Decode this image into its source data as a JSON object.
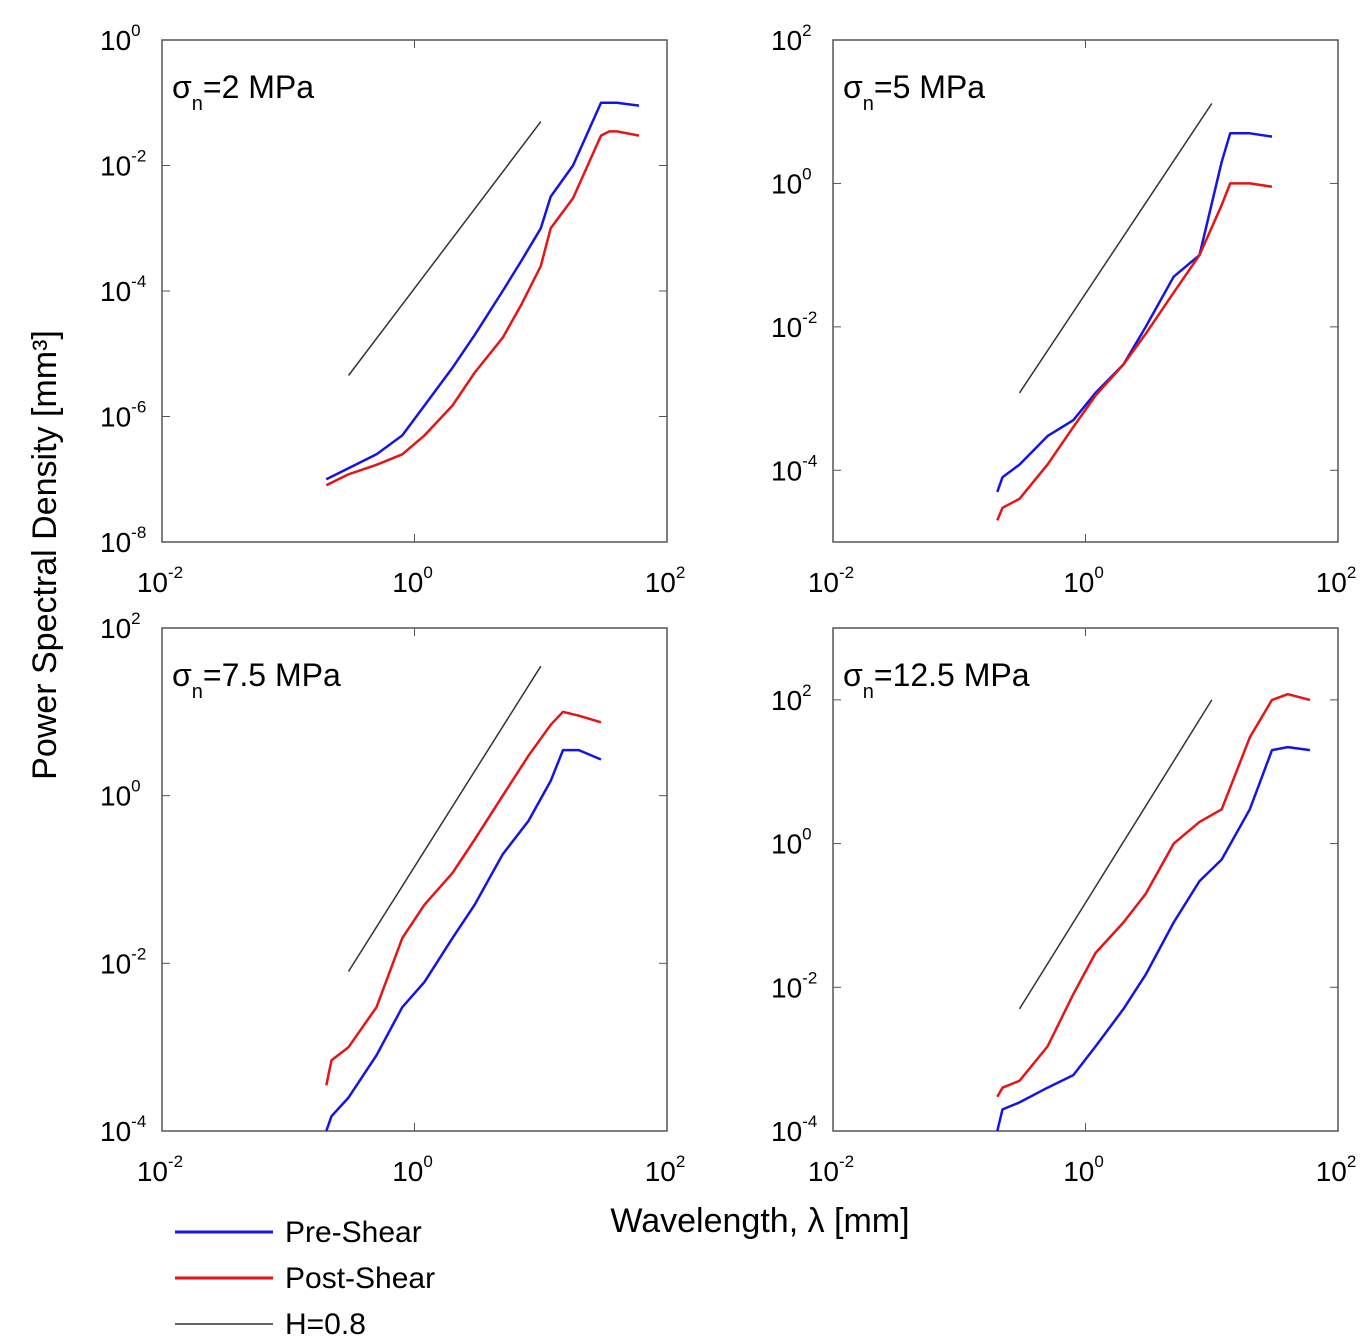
{
  "colors": {
    "pre_shear": "#1414e6",
    "post_shear": "#e61414",
    "h_line": "#333333"
  },
  "figure": {
    "xlabel": "Wavelength, λ [mm]",
    "ylabel": "Power Spectral Density [mm³]"
  },
  "legend": [
    {
      "label": "Pre-Shear",
      "color": "#1414e6"
    },
    {
      "label": "Post-Shear",
      "color": "#e61414"
    },
    {
      "label": "H=0.8",
      "color": "#333333"
    }
  ],
  "chart_data": [
    {
      "type": "line",
      "title": "σn=2 MPa",
      "title_main": "σ",
      "title_sub": "n",
      "title_rest": "=2 MPa",
      "xscale": "log",
      "yscale": "log",
      "xlim": [
        0.01,
        100
      ],
      "ylim": [
        1e-08,
        1
      ],
      "xticks": [
        {
          "base": "10",
          "exp": "-2"
        },
        {
          "base": "10",
          "exp": "0"
        },
        {
          "base": "10",
          "exp": "2"
        }
      ],
      "yticks": [
        {
          "base": "10",
          "exp": "-8"
        },
        {
          "base": "10",
          "exp": "-6"
        },
        {
          "base": "10",
          "exp": "-4"
        },
        {
          "base": "10",
          "exp": "-2"
        },
        {
          "base": "10",
          "exp": "0"
        }
      ],
      "xtick_values": [
        0.01,
        1,
        100
      ],
      "ytick_values": [
        1e-08,
        1e-06,
        0.0001,
        0.01,
        1
      ],
      "series": [
        {
          "name": "Pre-Shear",
          "color": "#1414e6",
          "x": [
            0.2,
            0.3,
            0.5,
            0.8,
            1.2,
            2,
            3,
            5,
            7,
            10,
            12,
            18,
            30,
            35,
            40,
            60
          ],
          "y": [
            1e-07,
            1.5e-07,
            2.5e-07,
            5e-07,
            1.5e-06,
            6e-06,
            2e-05,
            0.0001,
            0.0003,
            0.001,
            0.0032,
            0.01,
            0.1,
            0.1,
            0.1,
            0.09
          ]
        },
        {
          "name": "Post-Shear",
          "color": "#e61414",
          "x": [
            0.2,
            0.3,
            0.5,
            0.8,
            1.2,
            2,
            3,
            5,
            7,
            10,
            12,
            18,
            30,
            35,
            40,
            60
          ],
          "y": [
            8e-08,
            1.2e-07,
            1.7e-07,
            2.5e-07,
            5e-07,
            1.5e-06,
            5e-06,
            1.8e-05,
            6e-05,
            0.00025,
            0.001,
            0.003,
            0.03,
            0.035,
            0.035,
            0.03
          ]
        },
        {
          "name": "H=0.8",
          "color": "#333333",
          "x": [
            0.3,
            10
          ],
          "y": [
            4.5e-06,
            0.05
          ]
        }
      ]
    },
    {
      "type": "line",
      "title": "σn=5 MPa",
      "title_main": "σ",
      "title_sub": "n",
      "title_rest": "=5 MPa",
      "xscale": "log",
      "yscale": "log",
      "xlim": [
        0.01,
        100
      ],
      "ylim": [
        1e-05,
        100
      ],
      "xticks": [
        {
          "base": "10",
          "exp": "-2"
        },
        {
          "base": "10",
          "exp": "0"
        },
        {
          "base": "10",
          "exp": "2"
        }
      ],
      "yticks": [
        {
          "base": "10",
          "exp": "-4"
        },
        {
          "base": "10",
          "exp": "-2"
        },
        {
          "base": "10",
          "exp": "0"
        },
        {
          "base": "10",
          "exp": "2"
        }
      ],
      "xtick_values": [
        0.01,
        1,
        100
      ],
      "ytick_values": [
        0.0001,
        0.01,
        1,
        100
      ],
      "series": [
        {
          "name": "Pre-Shear",
          "color": "#1414e6",
          "x": [
            0.2,
            0.22,
            0.3,
            0.5,
            0.8,
            1.2,
            2,
            3,
            5,
            8,
            12,
            14,
            20,
            30
          ],
          "y": [
            5e-05,
            8e-05,
            0.00012,
            0.0003,
            0.0005,
            0.0012,
            0.003,
            0.01,
            0.05,
            0.1,
            2,
            5,
            5,
            4.5
          ]
        },
        {
          "name": "Post-Shear",
          "color": "#e61414",
          "x": [
            0.2,
            0.22,
            0.3,
            0.5,
            0.8,
            1.2,
            2,
            3,
            5,
            8,
            12,
            14,
            20,
            30
          ],
          "y": [
            2e-05,
            3e-05,
            4e-05,
            0.00012,
            0.0004,
            0.0011,
            0.003,
            0.008,
            0.03,
            0.1,
            0.5,
            1,
            1,
            0.9
          ]
        },
        {
          "name": "H=0.8",
          "color": "#333333",
          "x": [
            0.3,
            10
          ],
          "y": [
            0.0012,
            13
          ]
        }
      ]
    },
    {
      "type": "line",
      "title": "σn=7.5 MPa",
      "title_main": "σ",
      "title_sub": "n",
      "title_rest": "=7.5 MPa",
      "xscale": "log",
      "yscale": "log",
      "xlim": [
        0.01,
        100
      ],
      "ylim": [
        0.0001,
        100
      ],
      "xticks": [
        {
          "base": "10",
          "exp": "-2"
        },
        {
          "base": "10",
          "exp": "0"
        },
        {
          "base": "10",
          "exp": "2"
        }
      ],
      "yticks": [
        {
          "base": "10",
          "exp": "-4"
        },
        {
          "base": "10",
          "exp": "-2"
        },
        {
          "base": "10",
          "exp": "0"
        },
        {
          "base": "10",
          "exp": "2"
        }
      ],
      "xtick_values": [
        0.01,
        1,
        100
      ],
      "ytick_values": [
        0.0001,
        0.01,
        1,
        100
      ],
      "series": [
        {
          "name": "Pre-Shear",
          "color": "#1414e6",
          "x": [
            0.2,
            0.22,
            0.3,
            0.5,
            0.8,
            1.2,
            2,
            3,
            5,
            8,
            12,
            15,
            20,
            30
          ],
          "y": [
            0.0001,
            0.00015,
            0.00025,
            0.0008,
            0.003,
            0.006,
            0.02,
            0.05,
            0.2,
            0.5,
            1.5,
            3.5,
            3.5,
            2.7
          ]
        },
        {
          "name": "Post-Shear",
          "color": "#e61414",
          "x": [
            0.2,
            0.22,
            0.3,
            0.5,
            0.8,
            1.2,
            2,
            3,
            5,
            8,
            12,
            15,
            20,
            30
          ],
          "y": [
            0.00035,
            0.0007,
            0.001,
            0.003,
            0.02,
            0.05,
            0.12,
            0.3,
            1,
            3,
            7,
            10,
            9,
            7.5
          ]
        },
        {
          "name": "H=0.8",
          "color": "#333333",
          "x": [
            0.3,
            10
          ],
          "y": [
            0.008,
            35
          ]
        }
      ]
    },
    {
      "type": "line",
      "title": "σn=12.5 MPa",
      "title_main": "σ",
      "title_sub": "n",
      "title_rest": "=12.5 MPa",
      "xscale": "log",
      "yscale": "log",
      "xlim": [
        0.01,
        100
      ],
      "ylim": [
        0.0001,
        1000
      ],
      "xticks": [
        {
          "base": "10",
          "exp": "-2"
        },
        {
          "base": "10",
          "exp": "0"
        },
        {
          "base": "10",
          "exp": "2"
        }
      ],
      "yticks": [
        {
          "base": "10",
          "exp": "-4"
        },
        {
          "base": "10",
          "exp": "-2"
        },
        {
          "base": "10",
          "exp": "0"
        },
        {
          "base": "10",
          "exp": "2"
        }
      ],
      "xtick_values": [
        0.01,
        1,
        100
      ],
      "ytick_values": [
        0.0001,
        0.01,
        1,
        100
      ],
      "series": [
        {
          "name": "Pre-Shear",
          "color": "#1414e6",
          "x": [
            0.2,
            0.22,
            0.3,
            0.5,
            0.8,
            1.2,
            2,
            3,
            5,
            8,
            12,
            20,
            30,
            40,
            60
          ],
          "y": [
            0.0001,
            0.0002,
            0.00025,
            0.0004,
            0.0006,
            0.0015,
            0.005,
            0.015,
            0.08,
            0.3,
            0.6,
            3,
            20,
            22,
            20
          ]
        },
        {
          "name": "Post-Shear",
          "color": "#e61414",
          "x": [
            0.2,
            0.22,
            0.3,
            0.5,
            0.8,
            1.2,
            2,
            3,
            5,
            8,
            12,
            20,
            30,
            40,
            60
          ],
          "y": [
            0.0003,
            0.0004,
            0.0005,
            0.0015,
            0.008,
            0.03,
            0.08,
            0.2,
            1,
            2,
            3,
            30,
            100,
            120,
            100
          ]
        },
        {
          "name": "H=0.8",
          "color": "#333333",
          "x": [
            0.3,
            10
          ],
          "y": [
            0.005,
            100
          ]
        }
      ]
    }
  ]
}
